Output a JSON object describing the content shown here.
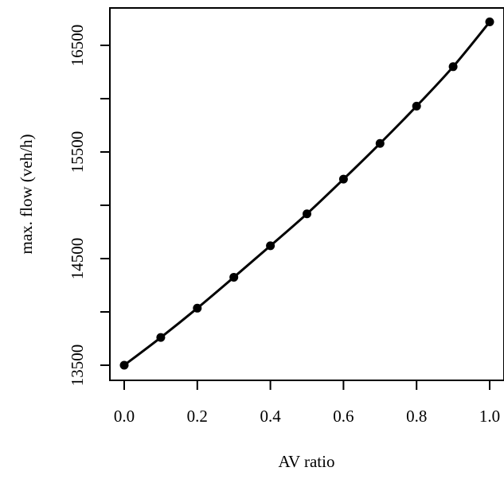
{
  "chart_data": {
    "type": "line",
    "title": "",
    "xlabel": "AV ratio",
    "ylabel": "max. flow  (veh/h)",
    "xlim": [
      0.0,
      1.0
    ],
    "ylim": [
      13500,
      16700
    ],
    "x_ticks": [
      0.0,
      0.2,
      0.4,
      0.6,
      0.8,
      1.0
    ],
    "x_tick_labels": [
      "0.0",
      "0.2",
      "0.4",
      "0.6",
      "0.8",
      "1.0"
    ],
    "y_ticks": [
      13500,
      14000,
      14500,
      15000,
      15500,
      16000,
      16500
    ],
    "y_tick_labels": [
      "13500",
      "",
      "14500",
      "",
      "15500",
      "",
      "16500"
    ],
    "grid": false,
    "series": [
      {
        "x": [
          0.0,
          0.1,
          0.2,
          0.3,
          0.4,
          0.5,
          0.6,
          0.7,
          0.8,
          0.9,
          1.0
        ],
        "y": [
          13500,
          13760,
          14035,
          14325,
          14620,
          14920,
          15245,
          15580,
          15930,
          16300,
          16720
        ],
        "color": "#000000",
        "marker": "circle"
      }
    ]
  }
}
